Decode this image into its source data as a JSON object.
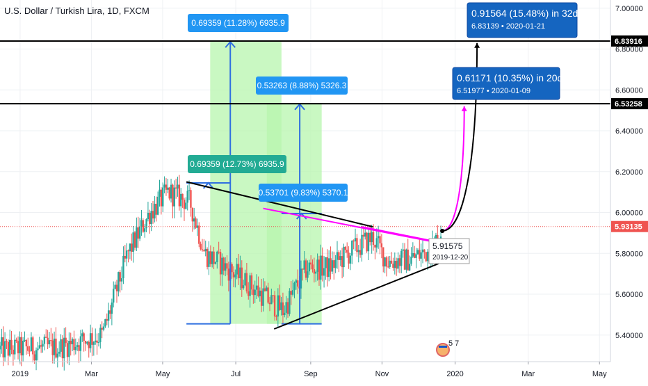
{
  "header": {
    "title": "U.S. Dollar / Turkish Lira, 1D, FXCM"
  },
  "colors": {
    "up": "#26a69a",
    "down": "#ef5350",
    "range_fill": "#b7f5ad",
    "arrow_blue": "#2f6fe0",
    "label_teal": "#22ab94",
    "label_blue": "#2196f3",
    "label_dark_blue": "#1565c0",
    "current_price_red": "#ef5350",
    "projection_magenta": "#ff00ff"
  },
  "chart_data": {
    "type": "candlestick",
    "symbol": "U.S. Dollar / Turkish Lira, 1D, FXCM",
    "x_ticks": [
      "2019",
      "Mar",
      "May",
      "Jul",
      "Sep",
      "Nov",
      "2020",
      "Mar",
      "May"
    ],
    "y_ticks": [
      "7.00000",
      "6.80000",
      "6.60000",
      "6.40000",
      "6.20000",
      "6.00000",
      "5.80000",
      "5.60000",
      "5.40000"
    ],
    "ylim": [
      5.27,
      7.04
    ],
    "xlim": [
      0,
      16.7
    ],
    "grid": true,
    "candles": [],
    "horizontal_lines": [
      {
        "label": "6.83916",
        "value": 6.83916
      },
      {
        "label": "6.53258",
        "value": 6.53258
      }
    ],
    "current_price": {
      "label": "5.93135",
      "value": 5.93135
    },
    "ranges": [
      {
        "x0": 5.75,
        "x1": 7.7,
        "y0": 5.455,
        "y1": 6.84,
        "arrow_x": 6.3,
        "arrow_from": 5.455,
        "arrow_to": 6.835,
        "label": "0.69359 (11.28%) 6935.9"
      },
      {
        "x0": 7.3,
        "x1": 8.8,
        "y0": 5.455,
        "y1": 6.535,
        "arrow_x": 8.2,
        "arrow_from": 5.455,
        "arrow_to": 6.53,
        "label": "0.53263 (8.88%) 5326.3"
      }
    ],
    "measures": [
      {
        "x0": 5.1,
        "x1": 6.3,
        "y0": 5.455,
        "y1": 6.145,
        "label": "0.69359 (12.73%) 6935.9"
      },
      {
        "x0": 7.7,
        "x1": 8.8,
        "y0": 5.455,
        "y1": 5.995,
        "label": "0.53701 (9.83%) 5370.1"
      }
    ],
    "trendlines": [
      {
        "from": [
          5.1,
          6.15
        ],
        "to": [
          10.2,
          5.93
        ],
        "color": "black"
      },
      {
        "from": [
          7.2,
          6.02
        ],
        "to": [
          11.9,
          5.855
        ],
        "color": "magenta"
      },
      {
        "from": [
          7.5,
          5.43
        ],
        "to": [
          12.0,
          5.75
        ],
        "color": "black"
      },
      {
        "from": [
          9.9,
          5.93
        ],
        "to": [
          12.0,
          5.855
        ],
        "color": "magenta"
      }
    ],
    "projections": [
      {
        "start": [
          12.1,
          5.91
        ],
        "end": [
          12.7,
          6.52
        ],
        "color": "magenta",
        "label_main": "0.61171 (10.35%) in 20d",
        "label_sub": "6.51977 • 2020-01-09"
      },
      {
        "start": [
          12.1,
          5.91
        ],
        "end": [
          13.05,
          6.83
        ],
        "color": "black",
        "label_main": "0.91564 (15.48%) in 32d",
        "label_sub": "6.83139 • 2020-01-21"
      }
    ],
    "tooltip": {
      "value": "5.91575",
      "date": "2019-12-20"
    },
    "badge": {
      "text": "5 7"
    }
  }
}
